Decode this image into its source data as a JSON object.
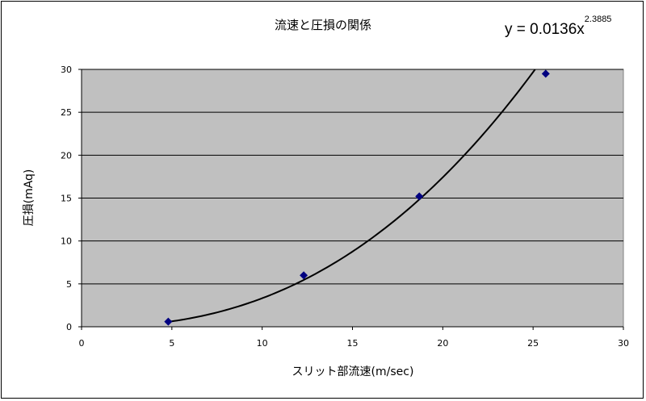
{
  "chart_data": {
    "type": "scatter",
    "title": "流速と圧損の関係",
    "xlabel": "スリット部流速(m/sec)",
    "ylabel": "圧損(mAq)",
    "xlim": [
      0,
      30
    ],
    "ylim": [
      0,
      30
    ],
    "xticks": [
      "0",
      "5",
      "10",
      "15",
      "20",
      "25",
      "30"
    ],
    "yticks": [
      "0",
      "5",
      "10",
      "15",
      "20",
      "25",
      "30"
    ],
    "grid": true,
    "plot_background": "#c0c0c0",
    "series": [
      {
        "marker": "diamond",
        "color": "#000080",
        "points": [
          {
            "x": 4.8,
            "y": 0.6
          },
          {
            "x": 12.3,
            "y": 6.0
          },
          {
            "x": 18.7,
            "y": 15.2
          },
          {
            "x": 25.7,
            "y": 29.5
          }
        ]
      }
    ],
    "trendline": {
      "type": "power",
      "coefficient": 0.0136,
      "exponent": 2.3885,
      "color": "#000000",
      "equation_base": "y = 0.0136x",
      "equation_exponent": "2.3885"
    }
  }
}
